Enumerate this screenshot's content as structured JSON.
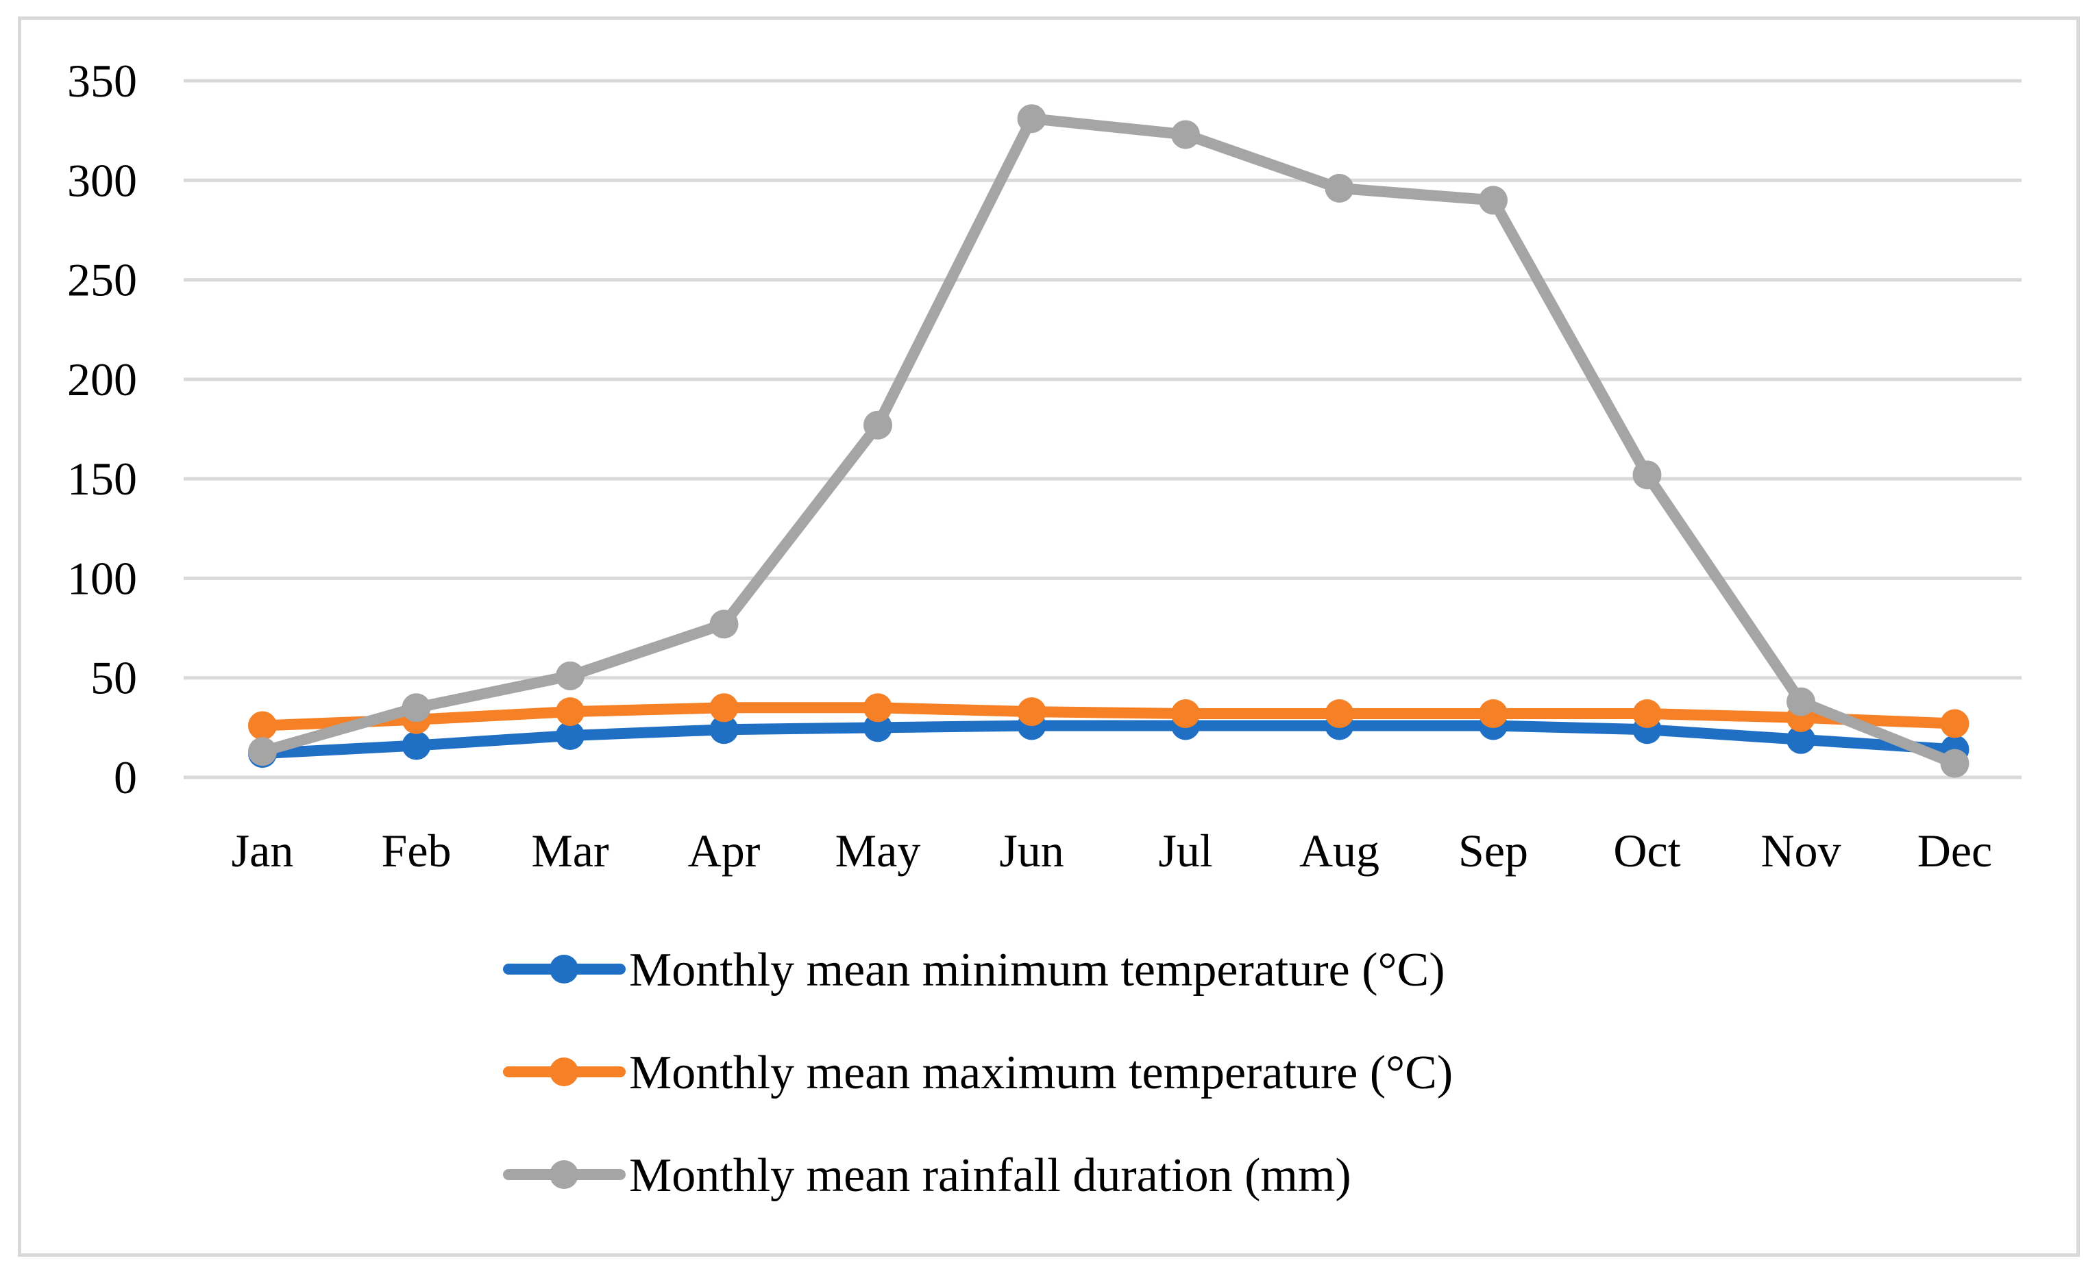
{
  "chart_data": {
    "type": "line",
    "title": "",
    "xlabel": "",
    "ylabel": "",
    "categories": [
      "Jan",
      "Feb",
      "Mar",
      "Apr",
      "May",
      "Jun",
      "Jul",
      "Aug",
      "Sep",
      "Oct",
      "Nov",
      "Dec"
    ],
    "ylim": [
      0,
      350
    ],
    "yticks": [
      "0",
      "50",
      "100",
      "150",
      "200",
      "250",
      "300",
      "350"
    ],
    "grid": true,
    "legend_position": "bottom",
    "series": [
      {
        "name": "Monthly mean minimum temperature (°C)",
        "color": "#1f6fc5",
        "values": [
          12,
          16,
          21,
          24,
          25,
          26,
          26,
          26,
          26,
          24,
          19,
          14
        ]
      },
      {
        "name": "Monthly mean maximum temperature (°C)",
        "color": "#f58025",
        "values": [
          26,
          29,
          33,
          35,
          35,
          33,
          32,
          32,
          32,
          32,
          30,
          27
        ]
      },
      {
        "name": "Monthly mean rainfall duration (mm)",
        "color": "#a5a5a5",
        "values": [
          13,
          35,
          51,
          77,
          177,
          331,
          323,
          296,
          290,
          152,
          38,
          7
        ]
      }
    ]
  }
}
